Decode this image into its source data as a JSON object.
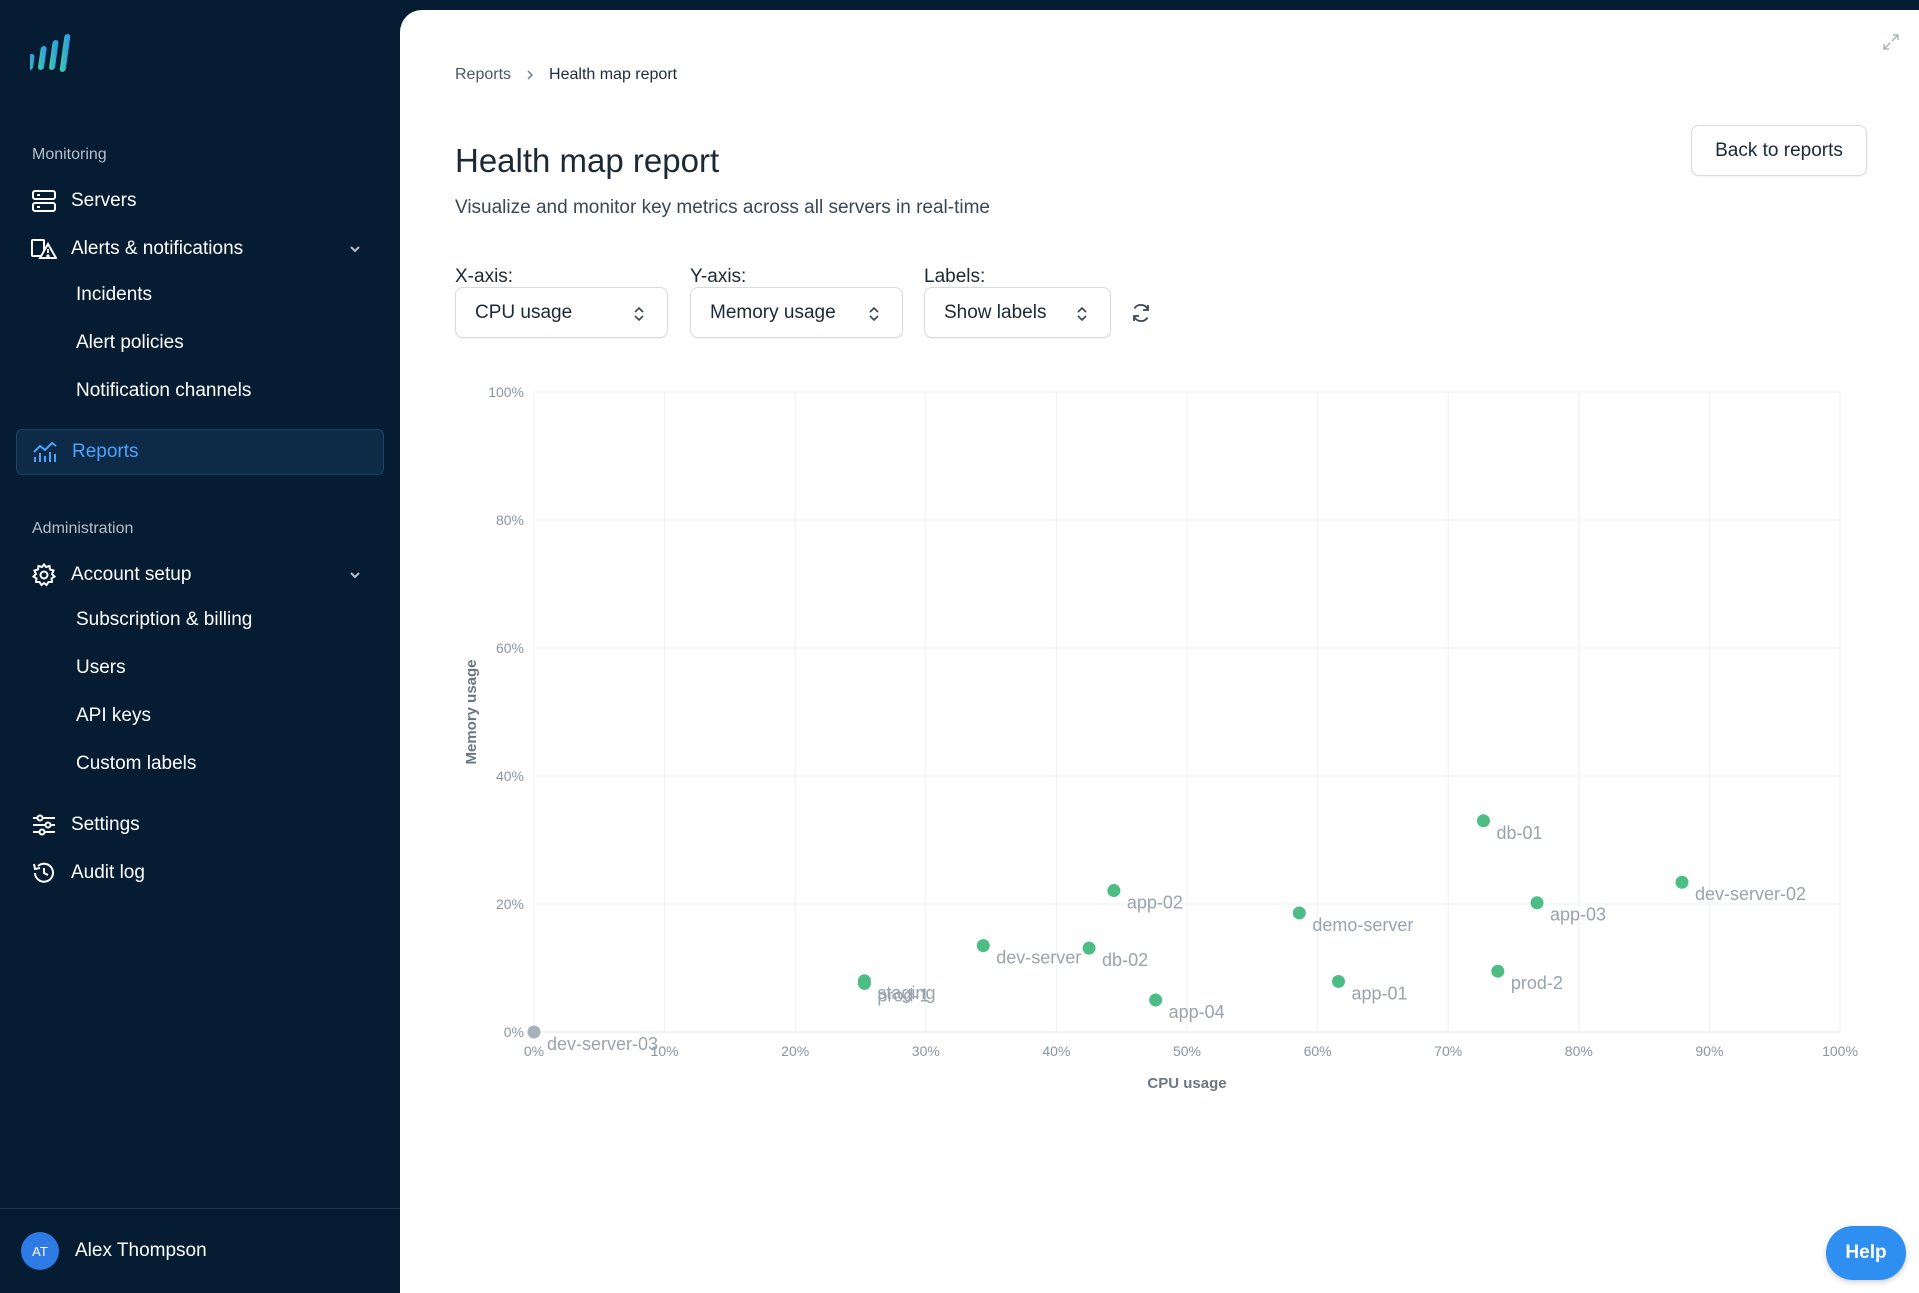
{
  "app": {
    "brand_color": "#2e8ff0",
    "sidebar_bg": "#061c32"
  },
  "sidebar": {
    "monitoring_label": "Monitoring",
    "administration_label": "Administration",
    "servers": "Servers",
    "alerts": "Alerts & notifications",
    "alerts_children": [
      "Incidents",
      "Alert policies",
      "Notification channels"
    ],
    "reports": "Reports",
    "account_setup": "Account setup",
    "account_children": [
      "Subscription & billing",
      "Users",
      "API keys",
      "Custom labels"
    ],
    "settings": "Settings",
    "audit_log": "Audit log",
    "user": {
      "initials": "AT",
      "name": "Alex Thompson"
    }
  },
  "breadcrumb": {
    "parent": "Reports",
    "current": "Health map report"
  },
  "page": {
    "title": "Health map report",
    "subtitle": "Visualize and monitor key metrics across all servers in real-time",
    "back_button": "Back to reports"
  },
  "controls": {
    "x_axis_label": "X-axis:",
    "x_axis_value": "CPU usage",
    "y_axis_label": "Y-axis:",
    "y_axis_value": "Memory usage",
    "labels_label": "Labels:",
    "labels_value": "Show labels"
  },
  "help_button": "Help",
  "chart_data": {
    "type": "scatter",
    "xlabel": "CPU usage",
    "ylabel": "Memory usage",
    "xlim": [
      0,
      100
    ],
    "ylim": [
      0,
      100
    ],
    "x_ticks": [
      "0%",
      "10%",
      "20%",
      "30%",
      "40%",
      "50%",
      "60%",
      "70%",
      "80%",
      "90%",
      "100%"
    ],
    "y_ticks": [
      "0%",
      "20%",
      "40%",
      "60%",
      "80%",
      "100%"
    ],
    "grid": true,
    "colors": {
      "healthy": "#4cbd85",
      "inactive": "#a9b1bb"
    },
    "points": [
      {
        "name": "dev-server-03",
        "x": 0,
        "y": 0,
        "status": "inactive"
      },
      {
        "name": "staging",
        "x": 25.3,
        "y": 8,
        "status": "healthy"
      },
      {
        "name": "prod-1",
        "x": 25.3,
        "y": 7.6,
        "status": "healthy"
      },
      {
        "name": "dev-server",
        "x": 34.4,
        "y": 13.5,
        "status": "healthy"
      },
      {
        "name": "db-02",
        "x": 42.5,
        "y": 13.1,
        "status": "healthy"
      },
      {
        "name": "app-02",
        "x": 44.4,
        "y": 22.1,
        "status": "healthy"
      },
      {
        "name": "app-04",
        "x": 47.6,
        "y": 5,
        "status": "healthy"
      },
      {
        "name": "demo-server",
        "x": 58.6,
        "y": 18.6,
        "status": "healthy"
      },
      {
        "name": "app-01",
        "x": 61.6,
        "y": 7.9,
        "status": "healthy"
      },
      {
        "name": "db-01",
        "x": 72.7,
        "y": 33,
        "status": "healthy"
      },
      {
        "name": "prod-2",
        "x": 73.8,
        "y": 9.5,
        "status": "healthy"
      },
      {
        "name": "app-03",
        "x": 76.8,
        "y": 20.2,
        "status": "healthy"
      },
      {
        "name": "dev-server-02",
        "x": 87.9,
        "y": 23.4,
        "status": "healthy"
      }
    ]
  }
}
